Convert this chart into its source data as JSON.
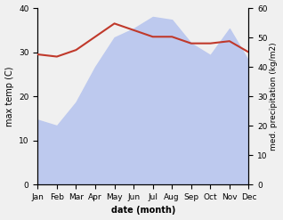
{
  "months": [
    "Jan",
    "Feb",
    "Mar",
    "Apr",
    "May",
    "Jun",
    "Jul",
    "Aug",
    "Sep",
    "Oct",
    "Nov",
    "Dec"
  ],
  "month_indices": [
    0,
    1,
    2,
    3,
    4,
    5,
    6,
    7,
    8,
    9,
    10,
    11
  ],
  "temp": [
    29.5,
    29.0,
    30.5,
    33.5,
    36.5,
    35.0,
    33.5,
    33.5,
    32.0,
    32.0,
    32.5,
    30.0
  ],
  "precip": [
    22,
    20,
    28,
    40,
    50,
    53,
    57,
    56,
    48,
    44,
    53,
    42
  ],
  "temp_color": "#c0392b",
  "precip_fill_color": "#bdc9ee",
  "ylabel_left": "max temp (C)",
  "ylabel_right": "med. precipitation (kg/m2)",
  "xlabel": "date (month)",
  "ylim_left": [
    0,
    40
  ],
  "ylim_right": [
    0,
    60
  ],
  "yticks_left": [
    0,
    10,
    20,
    30,
    40
  ],
  "yticks_right": [
    0,
    10,
    20,
    30,
    40,
    50,
    60
  ],
  "bg_color": "#f0f0f0"
}
